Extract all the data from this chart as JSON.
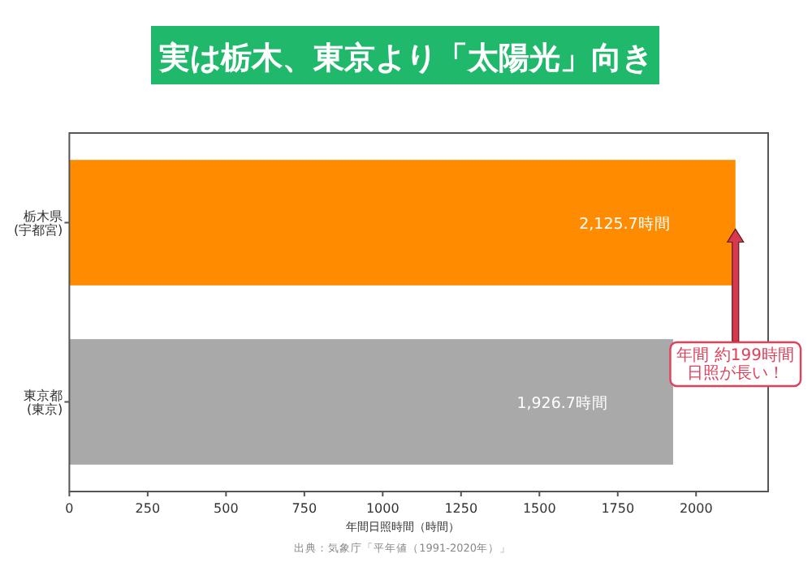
{
  "chart_data": {
    "type": "bar",
    "orientation": "horizontal",
    "title": "実は栃木、東京より「太陽光」向き",
    "xlabel": "年間日照時間（時間）",
    "categories": [
      "栃木県\n(宇都宮)",
      "東京都\n(東京)"
    ],
    "values": [
      2125.7,
      1926.7
    ],
    "colors": [
      "#ff8c00",
      "#a9a9a9"
    ],
    "value_labels": [
      "2,125.7時間",
      "1,926.7時間"
    ],
    "xlim": [
      0,
      2230
    ],
    "xticks": [
      0,
      250,
      500,
      750,
      1000,
      1250,
      1500,
      1750,
      2000
    ],
    "annotations": [
      "年間 約199時間日照が長い！",
      "出典：気象庁「平年値（1991-2020年）」"
    ]
  }
}
